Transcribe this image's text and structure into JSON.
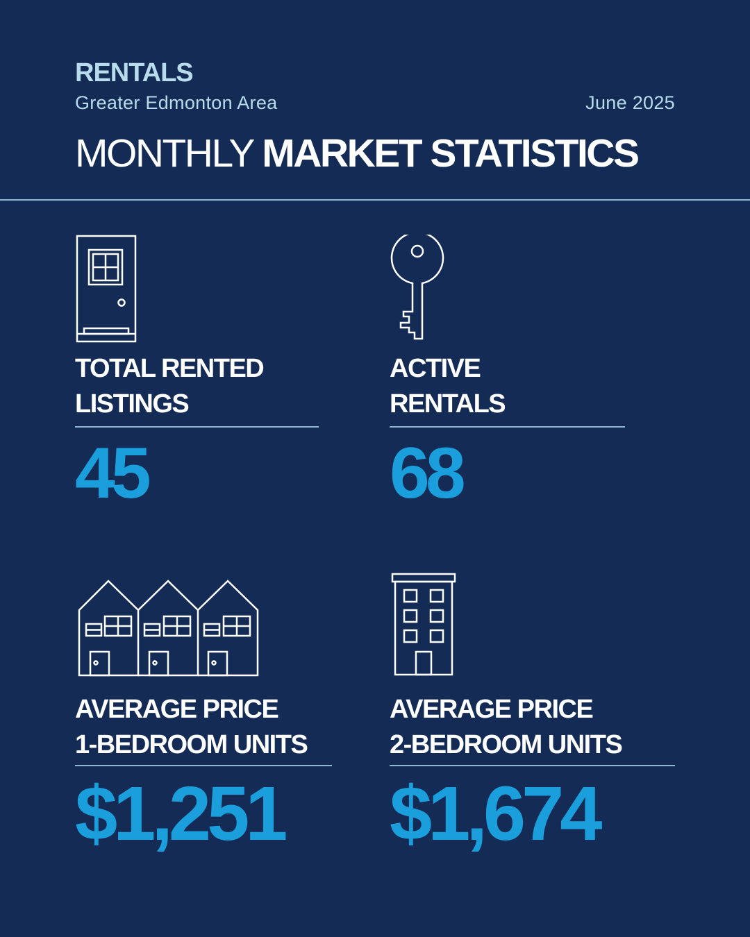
{
  "header": {
    "category": "RENTALS",
    "region": "Greater Edmonton Area",
    "date": "June 2025",
    "title_light": "MONTHLY",
    "title_bold": "MARKET STATISTICS"
  },
  "stats": [
    {
      "icon": "door-icon",
      "label_line1": "TOTAL RENTED",
      "label_line2": "LISTINGS",
      "value": "45"
    },
    {
      "icon": "key-icon",
      "label_line1": "ACTIVE",
      "label_line2": "RENTALS",
      "value": "68"
    },
    {
      "icon": "townhouses-icon",
      "label_line1": "AVERAGE PRICE",
      "label_line2": "1-BEDROOM UNITS",
      "value": "$1,251"
    },
    {
      "icon": "apartment-building-icon",
      "label_line1": "AVERAGE PRICE",
      "label_line2": "2-BEDROOM UNITS",
      "value": "$1,674"
    }
  ],
  "colors": {
    "background": "#132b55",
    "accent": "#1a9fdc",
    "light_blue": "#b9dcec",
    "rule": "#8fb6d3",
    "text": "#ffffff"
  }
}
